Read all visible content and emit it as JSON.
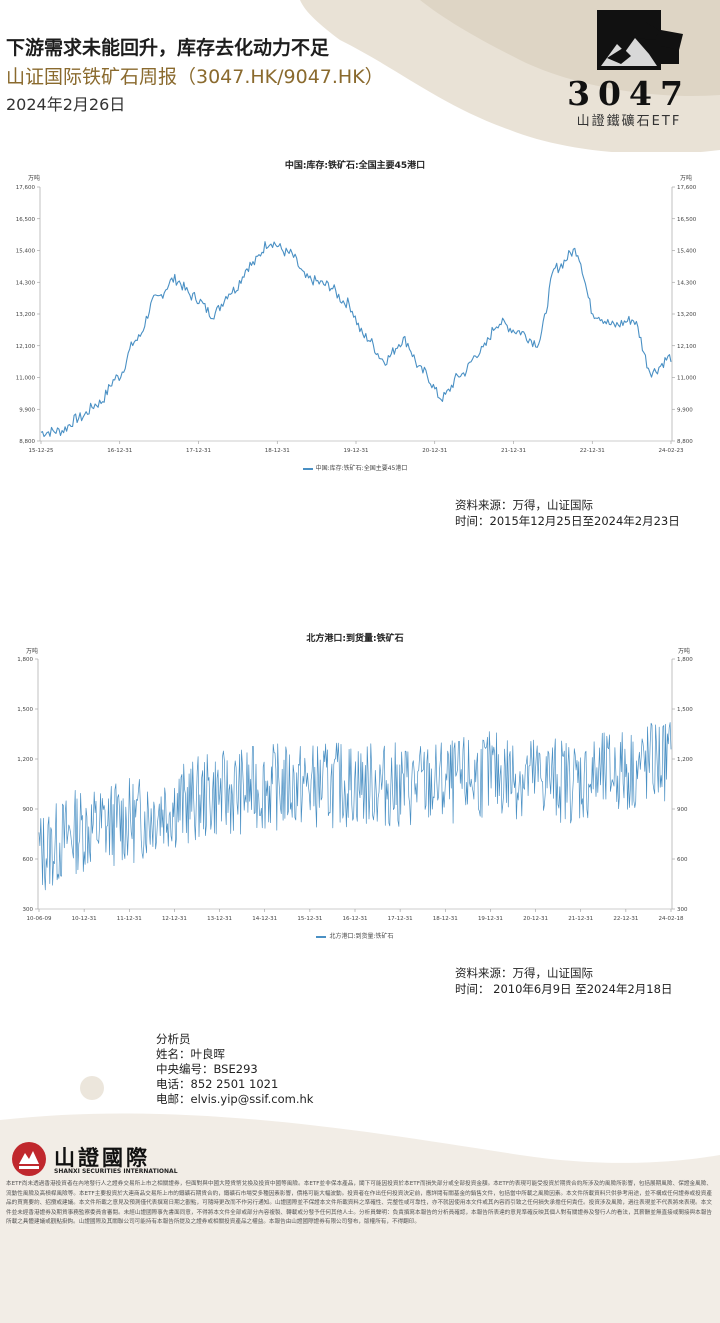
{
  "header": {
    "title": "下游需求未能回升，库存去化动力不足",
    "subtitle": "山证国际铁矿石周报（3047.HK/9047.HK）",
    "date": "2024年2月26日"
  },
  "logo": {
    "code": "3047",
    "name": "山證鐵礦石ETF"
  },
  "charts": [
    {
      "unit": "万吨",
      "legend": "中国:库存:铁矿石:全国主要45港口",
      "source": "资料来源：万得，山证国际",
      "time": "时间：2015年12月25日至2024年2月23日"
    },
    {
      "unit": "万吨",
      "legend": "北方港口:到货量:铁矿石",
      "source": "资料来源：万得，山证国际",
      "time": "时间： 2010年6月9日 至2024年2月18日"
    }
  ],
  "analyst": {
    "heading": "分析员",
    "name": "姓名：叶良晖",
    "id": "中央编号：BSE293",
    "phone": "电话：852 2501 1021",
    "email": "电邮：elvis.yip@ssif.com.hk"
  },
  "footer": {
    "company_cn": "山證國際",
    "company_en": "SHANXI SECURITIES INTERNATIONAL",
    "disclaimer": "本ETF尚未透過香港投資者在內地發行人之證券交易所上市之相關證券，但面對與中國大陸貨幣兌換及投資中國等風險。本ETF並非保本產品，閣下可能因投資於本ETF而損失部分或全部投資金額。本ETF的表現可能受投資於期貨合約所涉及的風險所影響，包括展期風險、保證金風險、流動性風險及高槓桿風險等。本ETF主要投資於大連商品交易所上市的鐵礦石期貨合約，鐵礦石市場受多種因素影響，價格可能大幅波動。投資者在作出任何投資決定前，應詳閱有關基金的銷售文件，包括當中所載之風險因素。本文件所載資料只供參考用途，並不構成任何證券或投資產品的買賣要約、招攬或建議。本文件所載之意見及預測僅代表撰寫日期之觀點，可隨時更改而不作另行通知。山證國際並不保證本文件所載資料之準確性、完整性或可靠性，亦不就因使用本文件或其內容而引致之任何損失承擔任何責任。投資涉及風險，過往表現並不代表將來表現。本文件並未經香港證券及期貨事務監察委員會審閱。未經山證國際事先書面同意，不得將本文件全部或部分內容複製、轉載或分發予任何其他人士。分析員聲明：負責撰寫本報告的分析員確認，本報告所表達的意見準確反映其個人對有關證券及發行人的看法，其薪酬並無直接或間接與本報告所載之具體建議或觀點掛鈎。山證國際及其關聯公司可能持有本報告所提及之證券或相關投資產品之權益。本報告由山證國際證券有限公司發布，版權所有，不得翻印。"
  },
  "chart_data": [
    {
      "type": "line",
      "title": "中国:库存:铁矿石:全国主要45港口",
      "ylabel": "万吨",
      "ylim": [
        8800,
        17600
      ],
      "yticks": [
        "17,600",
        "16,500",
        "15,400",
        "14,300",
        "13,200",
        "12,100",
        "11,000",
        "9,900",
        "8,800"
      ],
      "xticks": [
        "15-12-25",
        "16-12-31",
        "17-12-31",
        "18-12-31",
        "19-12-31",
        "20-12-31",
        "21-12-31",
        "22-12-31",
        "24-02-23"
      ],
      "series": [
        {
          "name": "中国:库存:铁矿石:全国主要45港口",
          "x": [
            "2015-12-25",
            "2016-03",
            "2016-06",
            "2016-09",
            "2016-12",
            "2017-03",
            "2017-06",
            "2017-09",
            "2017-12",
            "2018-03",
            "2018-06",
            "2018-09",
            "2018-12",
            "2019-03",
            "2019-06",
            "2019-09",
            "2019-12",
            "2020-03",
            "2020-06",
            "2020-09",
            "2020-12",
            "2021-03",
            "2021-06",
            "2021-09",
            "2021-12",
            "2022-03",
            "2022-06",
            "2022-09",
            "2022-12",
            "2023-03",
            "2023-06",
            "2023-09",
            "2023-12",
            "2024-02-23"
          ],
          "values": [
            9100,
            9150,
            9600,
            10100,
            11000,
            12300,
            13700,
            14400,
            13800,
            13200,
            14000,
            14900,
            15700,
            15300,
            14400,
            14200,
            13600,
            12400,
            11600,
            12300,
            11200,
            10300,
            11100,
            11900,
            12900,
            12600,
            12200,
            14800,
            15400,
            13200,
            12800,
            13000,
            11200,
            11700
          ]
        }
      ]
    },
    {
      "type": "line",
      "title": "北方港口:到货量:铁矿石",
      "ylabel": "万吨",
      "ylim": [
        300,
        1800
      ],
      "yticks": [
        "1,800",
        "1,500",
        "1,200",
        "900",
        "600",
        "300"
      ],
      "xticks": [
        "10-06-09",
        "10-12-31",
        "11-12-31",
        "12-12-31",
        "13-12-31",
        "14-12-31",
        "15-12-31",
        "16-12-31",
        "17-12-31",
        "18-12-31",
        "19-12-31",
        "20-12-31",
        "21-12-31",
        "22-12-31",
        "24-02-18"
      ],
      "series": [
        {
          "name": "北方港口:到货量:铁矿石",
          "x": [
            "2010-06",
            "2011-06",
            "2012-06",
            "2013-06",
            "2014-06",
            "2015-06",
            "2016-06",
            "2017-06",
            "2018-06",
            "2019-06",
            "2020-06",
            "2021-06",
            "2022-06",
            "2023-06",
            "2024-02"
          ],
          "values": [
            640,
            780,
            830,
            920,
            990,
            1030,
            1040,
            1050,
            1040,
            1050,
            1110,
            1090,
            1070,
            1130,
            1200
          ]
        }
      ]
    }
  ]
}
